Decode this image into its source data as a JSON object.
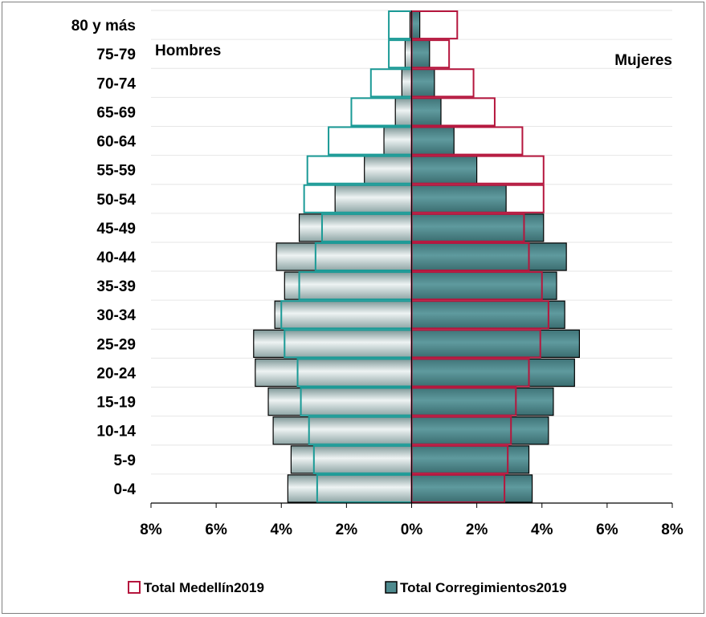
{
  "chart_data": {
    "type": "bar",
    "subtype": "population-pyramid",
    "categories": [
      "80 y más",
      "75-79",
      "70-74",
      "65-69",
      "60-64",
      "55-59",
      "50-54",
      "45-49",
      "40-44",
      "35-39",
      "30-34",
      "25-29",
      "20-24",
      "15-19",
      "10-14",
      "5-9",
      "0-4"
    ],
    "side_labels": {
      "left": "Hombres",
      "right": "Mujeres"
    },
    "xlim": [
      -8,
      8
    ],
    "x_ticks": [
      -8,
      -6,
      -4,
      -2,
      0,
      2,
      4,
      6,
      8
    ],
    "x_tick_labels": [
      "8%",
      "6%",
      "4%",
      "2%",
      "0%",
      "2%",
      "4%",
      "6%",
      "8%"
    ],
    "grid": true,
    "legend_position": "bottom",
    "series": [
      {
        "name": "Total Medellín2019",
        "style": "outline",
        "colors": {
          "men": "#1a9a96",
          "women": "#b5163d"
        },
        "men": [
          0.7,
          0.7,
          1.25,
          1.85,
          2.55,
          3.2,
          3.3,
          2.75,
          2.95,
          3.45,
          4.0,
          3.9,
          3.5,
          3.4,
          3.15,
          3.0,
          2.9
        ],
        "women": [
          1.4,
          1.15,
          1.9,
          2.55,
          3.4,
          4.05,
          4.05,
          3.45,
          3.6,
          4.0,
          4.2,
          3.95,
          3.6,
          3.2,
          3.05,
          2.95,
          2.85
        ]
      },
      {
        "name": "Total Corregimientos2019",
        "style": "filled",
        "colors": {
          "men": "#bfcfcf",
          "women": "#4e8a8e"
        },
        "men": [
          0.05,
          0.2,
          0.3,
          0.5,
          0.85,
          1.45,
          2.35,
          3.45,
          4.15,
          3.9,
          4.2,
          4.85,
          4.8,
          4.4,
          4.25,
          3.7,
          3.8
        ],
        "women": [
          0.25,
          0.55,
          0.7,
          0.9,
          1.3,
          2.0,
          2.9,
          4.05,
          4.75,
          4.45,
          4.7,
          5.15,
          5.0,
          4.35,
          4.2,
          3.6,
          3.7
        ]
      }
    ]
  }
}
